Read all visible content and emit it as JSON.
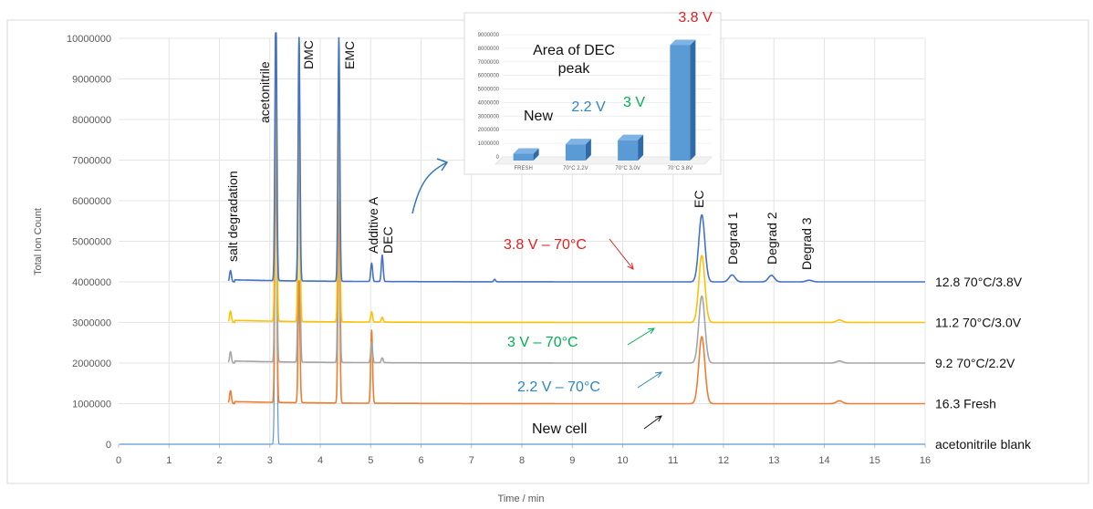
{
  "chart_data": {
    "type": "line",
    "xlabel": "Time / min",
    "ylabel": "Total Ion Count",
    "xlim": [
      0,
      16
    ],
    "ylim": [
      0,
      10000000
    ],
    "xticks": [
      "0",
      "1",
      "2",
      "3",
      "4",
      "5",
      "6",
      "7",
      "8",
      "9",
      "10",
      "11",
      "12",
      "13",
      "14",
      "15",
      "16"
    ],
    "yticks": [
      "0",
      "1000000",
      "2000000",
      "3000000",
      "4000000",
      "5000000",
      "6000000",
      "7000000",
      "8000000",
      "9000000",
      "10000000"
    ],
    "grid": true,
    "series": [
      {
        "name": "12.8 70°C/3.8V",
        "color": "#4472c4",
        "baseline": 4000000,
        "peaks": [
          [
            2.22,
            280000
          ],
          [
            3.12,
            7000000
          ],
          [
            3.58,
            6000000
          ],
          [
            4.37,
            6000000
          ],
          [
            5.02,
            450000
          ],
          [
            5.23,
            650000
          ],
          [
            7.46,
            60000
          ],
          [
            11.57,
            1650000
          ],
          [
            12.17,
            170000
          ],
          [
            12.95,
            160000
          ],
          [
            13.7,
            40000
          ]
        ]
      },
      {
        "name": "11.2 70°C/3.0V",
        "color": "#ffc000",
        "baseline": 3000000,
        "peaks": [
          [
            2.22,
            280000
          ],
          [
            3.12,
            7000000
          ],
          [
            3.58,
            6000000
          ],
          [
            4.37,
            6000000
          ],
          [
            5.02,
            250000
          ],
          [
            5.23,
            120000
          ],
          [
            11.57,
            1650000
          ],
          [
            14.3,
            60000
          ]
        ]
      },
      {
        "name": "9.2 70°C/2.2V",
        "color": "#a5a5a5",
        "baseline": 2000000,
        "peaks": [
          [
            2.22,
            280000
          ],
          [
            3.12,
            7000000
          ],
          [
            3.58,
            6000000
          ],
          [
            4.37,
            6000000
          ],
          [
            5.02,
            500000
          ],
          [
            5.23,
            120000
          ],
          [
            11.57,
            1650000
          ],
          [
            14.3,
            50000
          ]
        ]
      },
      {
        "name": "16.3 Fresh",
        "color": "#ed7d31",
        "baseline": 1000000,
        "peaks": [
          [
            2.22,
            320000
          ],
          [
            3.12,
            7000000
          ],
          [
            3.58,
            3000000
          ],
          [
            4.37,
            5000000
          ],
          [
            5.02,
            1800000
          ],
          [
            11.57,
            1650000
          ],
          [
            14.3,
            70000
          ]
        ]
      },
      {
        "name": "acetonitrile blank",
        "color": "#5b9bd5",
        "baseline": 0,
        "peaks": [
          [
            3.12,
            9000000
          ]
        ]
      }
    ],
    "annotations": {
      "peaks": [
        {
          "label": "salt degradation",
          "x": 2.22
        },
        {
          "label": "acetonitrile",
          "x": 3.12
        },
        {
          "label": "DMC",
          "x": 3.58
        },
        {
          "label": "EMC",
          "x": 4.37
        },
        {
          "label": "Additive A",
          "x": 5.02
        },
        {
          "label": "DEC",
          "x": 5.23
        },
        {
          "label": "EC",
          "x": 11.57
        },
        {
          "label": "Degrad 1",
          "x": 12.17
        },
        {
          "label": "Degrad 2",
          "x": 12.95
        },
        {
          "label": "Degrad 3",
          "x": 13.7
        }
      ],
      "conditions": [
        {
          "label": "3.8 V – 70°C",
          "color": "#e02020"
        },
        {
          "label": "3 V – 70°C",
          "color": "#00b050"
        },
        {
          "label": "2.2 V – 70°C",
          "color": "#2e86c1"
        },
        {
          "label": "New cell",
          "color": "#111111"
        }
      ]
    },
    "inset": {
      "type": "bar",
      "title": "Area of DEC peak",
      "categories": [
        "FRESH",
        "70°C 2.2V",
        "70°C 3.0V",
        "70°C 3.8V"
      ],
      "values": [
        500000,
        1200000,
        1500000,
        8500000
      ],
      "ylim": [
        0,
        9000000
      ],
      "yticks": [
        "0",
        "1000000",
        "2000000",
        "3000000",
        "4000000",
        "5000000",
        "6000000",
        "7000000",
        "8000000",
        "9000000"
      ],
      "bar_labels": [
        {
          "text": "New",
          "color": "#111111"
        },
        {
          "text": "2.2 V",
          "color": "#2e86c1"
        },
        {
          "text": "3 V",
          "color": "#00b050"
        },
        {
          "text": "3.8 V",
          "color": "#e02020"
        }
      ]
    }
  }
}
